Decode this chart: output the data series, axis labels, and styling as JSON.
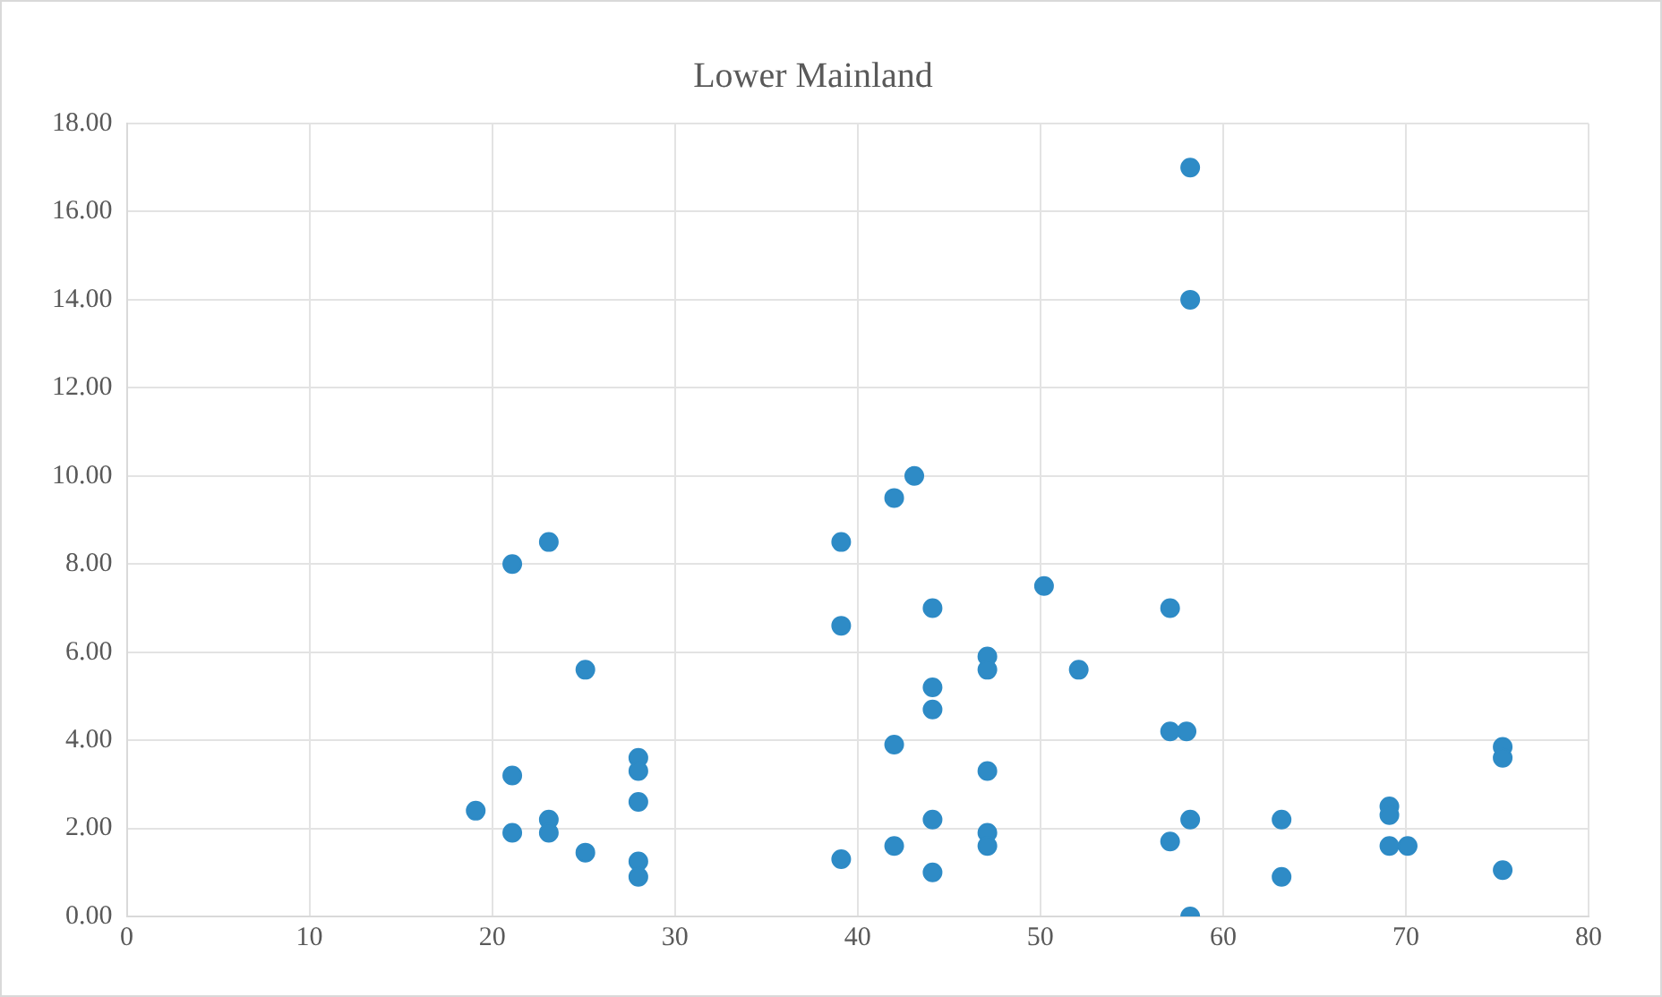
{
  "chart_data": {
    "type": "scatter",
    "title": "Lower Mainland",
    "x": [
      19.1,
      21.1,
      21.1,
      21.1,
      23.1,
      23.1,
      23.1,
      25.1,
      25.1,
      28,
      28,
      28,
      28,
      28,
      39.1,
      39.1,
      39.1,
      42,
      43.1,
      42,
      42,
      44.1,
      44.1,
      44.1,
      44.1,
      44.1,
      47.1,
      47.1,
      47.1,
      47.1,
      47.1,
      50.2,
      52.1,
      57.1,
      57.1,
      58,
      57.1,
      58.2,
      58.2,
      58.2,
      58.2,
      63.2,
      63.2,
      69.1,
      69.1,
      69.1,
      70.1,
      75.3,
      75.3,
      75.3
    ],
    "values": [
      2.4,
      8,
      3.2,
      1.9,
      8.5,
      2.2,
      1.9,
      5.6,
      1.45,
      3.6,
      3.3,
      2.6,
      1.25,
      0.9,
      8.5,
      6.6,
      1.3,
      9.5,
      10,
      3.9,
      1.6,
      7,
      5.2,
      4.7,
      2.2,
      1,
      5.9,
      5.6,
      3.3,
      1.9,
      1.6,
      7.5,
      5.6,
      7,
      4.2,
      4.2,
      1.7,
      17,
      14,
      2.2,
      0,
      2.2,
      0.9,
      2.5,
      2.3,
      1.6,
      1.6,
      3.85,
      3.6,
      1.05
    ],
    "color": "#2e8bc6",
    "marker": "circle",
    "xlim": [
      0,
      80
    ],
    "xticks": [
      0,
      10,
      20,
      30,
      40,
      50,
      60,
      70,
      80
    ],
    "ylim": [
      0,
      18
    ],
    "yticks": [
      {
        "value": 0,
        "label": "0.00"
      },
      {
        "value": 2,
        "label": "2.00"
      },
      {
        "value": 4,
        "label": "4.00"
      },
      {
        "value": 6,
        "label": "6.00"
      },
      {
        "value": 8,
        "label": "8.00"
      },
      {
        "value": 10,
        "label": "10.00"
      },
      {
        "value": 12,
        "label": "12.00"
      },
      {
        "value": 14,
        "label": "14.00"
      },
      {
        "value": 16,
        "label": "16.00"
      },
      {
        "value": 18,
        "label": "18.00"
      }
    ],
    "grid": true,
    "legend": false
  }
}
